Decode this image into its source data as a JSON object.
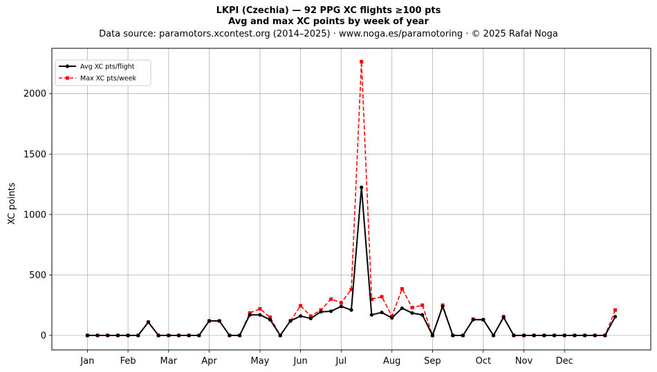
{
  "chart_data": {
    "type": "line",
    "title": "LKPI (Czechia)  —  92 PPG XC flights ≥100 pts",
    "subtitle": "Avg and max XC points by week of year",
    "source": "Data source: paramotors.xcontest.org (2014–2025)  ·  www.noga.es/paramotoring  ·  © 2025 Rafał Noga",
    "xlabel": "",
    "ylabel": "XC points",
    "xlim": [
      -2.5,
      56.5
    ],
    "ylim": [
      -120,
      2375
    ],
    "yticks": [
      0,
      500,
      1000,
      1500,
      2000
    ],
    "xticks": [
      {
        "label": "Jan",
        "week": 1
      },
      {
        "label": "Feb",
        "week": 5
      },
      {
        "label": "Mar",
        "week": 9
      },
      {
        "label": "Apr",
        "week": 13
      },
      {
        "label": "May",
        "week": 18
      },
      {
        "label": "Jun",
        "week": 22
      },
      {
        "label": "Jul",
        "week": 26
      },
      {
        "label": "Aug",
        "week": 31
      },
      {
        "label": "Sep",
        "week": 35
      },
      {
        "label": "Oct",
        "week": 40
      },
      {
        "label": "Nov",
        "week": 44
      },
      {
        "label": "Dec",
        "week": 48
      }
    ],
    "grid": true,
    "legend_position": "top-left",
    "x": [
      1,
      2,
      3,
      4,
      5,
      6,
      7,
      8,
      9,
      10,
      11,
      12,
      13,
      14,
      15,
      16,
      17,
      18,
      19,
      20,
      21,
      22,
      23,
      24,
      25,
      26,
      27,
      28,
      29,
      30,
      31,
      32,
      33,
      34,
      35,
      36,
      37,
      38,
      39,
      40,
      41,
      42,
      43,
      44,
      45,
      46,
      47,
      48,
      49,
      50,
      51,
      52,
      53
    ],
    "series": [
      {
        "name": "Avg XC pts/flight",
        "color": "#000000",
        "style": "solid",
        "marker": "circle",
        "values": [
          0,
          0,
          0,
          0,
          0,
          0,
          110,
          0,
          0,
          0,
          0,
          0,
          120,
          120,
          0,
          0,
          170,
          170,
          130,
          0,
          120,
          160,
          140,
          195,
          200,
          240,
          210,
          1225,
          170,
          190,
          145,
          225,
          185,
          170,
          0,
          240,
          0,
          0,
          130,
          130,
          0,
          150,
          0,
          0,
          0,
          0,
          0,
          0,
          0,
          0,
          0,
          0,
          155
        ]
      },
      {
        "name": "Max XC pts/week",
        "color": "#ff0000",
        "style": "dashed",
        "marker": "square",
        "values": [
          0,
          0,
          0,
          0,
          0,
          0,
          110,
          0,
          0,
          0,
          0,
          0,
          120,
          120,
          0,
          0,
          185,
          220,
          150,
          0,
          120,
          245,
          160,
          210,
          300,
          270,
          380,
          2265,
          300,
          320,
          160,
          385,
          230,
          250,
          0,
          250,
          0,
          0,
          135,
          130,
          0,
          155,
          0,
          0,
          0,
          0,
          0,
          0,
          0,
          0,
          0,
          0,
          210
        ]
      }
    ]
  }
}
